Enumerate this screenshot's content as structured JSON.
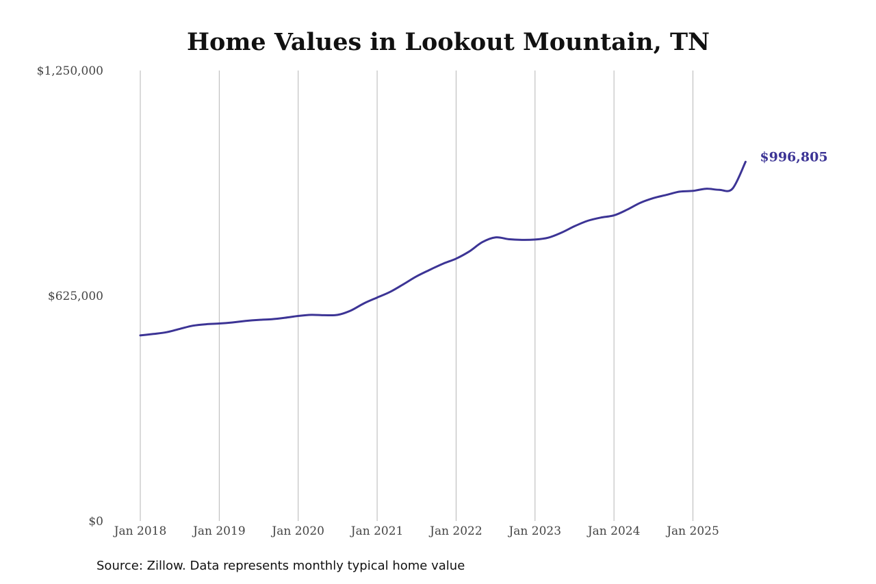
{
  "chart_data": {
    "type": "line",
    "title": "Home Values in Lookout Mountain, TN",
    "xlabel": "",
    "ylabel": "",
    "x_tick_labels": [
      "Jan 2018",
      "Jan 2019",
      "Jan 2020",
      "Jan 2021",
      "Jan 2022",
      "Jan 2023",
      "Jan 2024",
      "Jan 2025"
    ],
    "y_tick_labels": [
      "$0",
      "$625,000",
      "$1,250,000"
    ],
    "y_ticks": [
      0,
      625000,
      1250000
    ],
    "ylim": [
      0,
      1250000
    ],
    "grid": "vertical",
    "line_color": "#3c3495",
    "end_label": "$996,805",
    "series": [
      {
        "x": [
          "2018-01",
          "2018-03",
          "2018-05",
          "2018-07",
          "2018-09",
          "2018-11",
          "2019-01",
          "2019-03",
          "2019-05",
          "2019-07",
          "2019-09",
          "2019-11",
          "2020-01",
          "2020-03",
          "2020-05",
          "2020-07",
          "2020-09",
          "2020-11",
          "2021-01",
          "2021-03",
          "2021-05",
          "2021-07",
          "2021-09",
          "2021-11",
          "2022-01",
          "2022-03",
          "2022-05",
          "2022-07",
          "2022-09",
          "2022-11",
          "2023-01",
          "2023-03",
          "2023-05",
          "2023-07",
          "2023-09",
          "2023-11",
          "2024-01",
          "2024-03",
          "2024-05",
          "2024-07",
          "2024-09",
          "2024-11",
          "2025-01",
          "2025-03",
          "2025-05",
          "2025-07",
          "2025-09"
        ],
        "values": [
          515000,
          519000,
          524000,
          533000,
          542000,
          546000,
          548000,
          551000,
          555000,
          558000,
          560000,
          564000,
          569000,
          572000,
          571000,
          572000,
          584000,
          604000,
          620000,
          636000,
          657000,
          679000,
          697000,
          714000,
          728000,
          748000,
          774000,
          787000,
          782000,
          780000,
          781000,
          786000,
          800000,
          818000,
          833000,
          842000,
          848000,
          864000,
          883000,
          896000,
          905000,
          914000,
          916000,
          922000,
          919000,
          922000,
          996805
        ]
      }
    ]
  },
  "source_note": "Source: Zillow. Data represents monthly typical home value"
}
